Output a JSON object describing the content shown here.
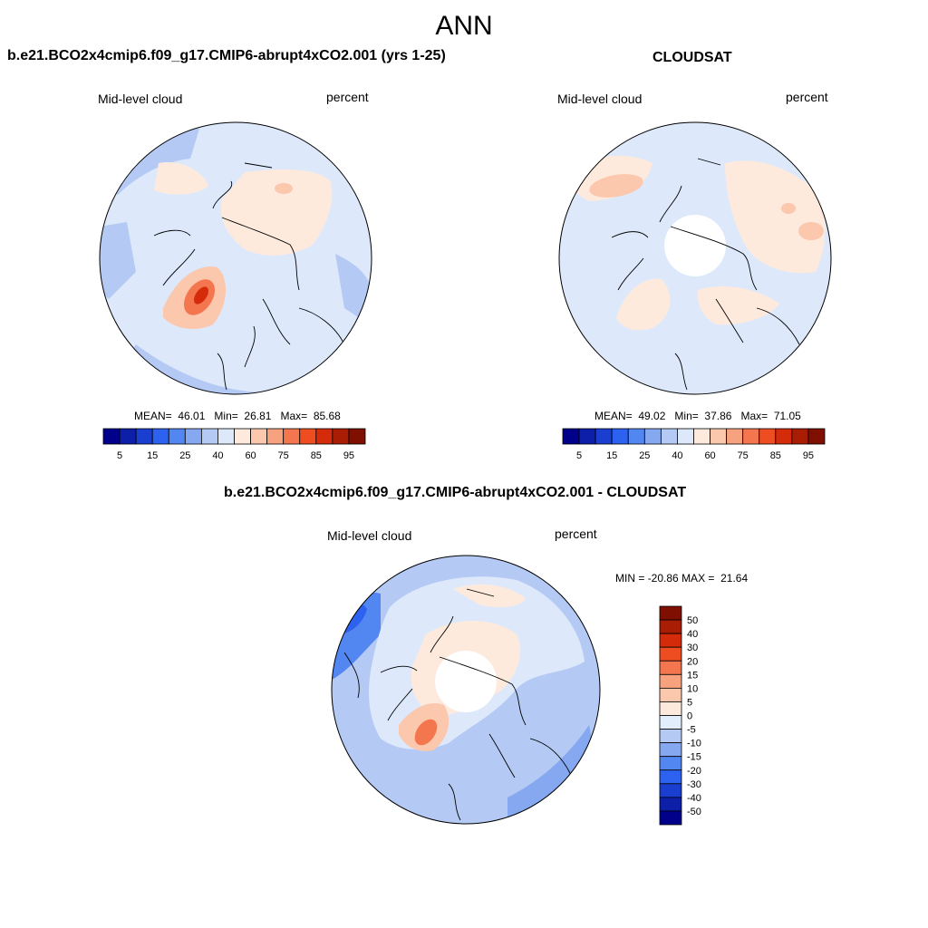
{
  "figure_title": "ANN",
  "panels": [
    {
      "title": "b.e21.BCO2x4cmip6.f09_g17.CMIP6-abrupt4xCO2.001 (yrs 1-25)",
      "left_label": "Mid-level cloud",
      "right_label": "percent",
      "stats": {
        "mean_label": "MEAN=",
        "mean": "46.01",
        "min_label": "Min=",
        "min": "26.81",
        "max_label": "Max=",
        "max": "85.68"
      }
    },
    {
      "title": "CLOUDSAT",
      "left_label": "Mid-level cloud",
      "right_label": "percent",
      "stats": {
        "mean_label": "MEAN=",
        "mean": "49.02",
        "min_label": "Min=",
        "min": "37.86",
        "max_label": "Max=",
        "max": "71.05"
      }
    },
    {
      "title": "b.e21.BCO2x4cmip6.f09_g17.CMIP6-abrupt4xCO2.001 - CLOUDSAT",
      "left_label": "Mid-level cloud",
      "right_label": "percent",
      "stats": {
        "min_label": "MIN =",
        "min": "-20.86",
        "max_label": "MAX =",
        "max": "21.64"
      }
    }
  ],
  "chart_data": [
    {
      "type": "heatmap",
      "projection": "polar stereographic (north pole)",
      "title": "b.e21.BCO2x4cmip6.f09_g17.CMIP6-abrupt4xCO2.001 (yrs 1-25)",
      "variable": "Mid-level cloud",
      "units": "percent",
      "mean": 46.01,
      "min": 26.81,
      "max": 85.68,
      "colorbar": {
        "orientation": "horizontal",
        "levels": [
          5,
          10,
          15,
          20,
          25,
          30,
          40,
          50,
          60,
          65,
          75,
          80,
          85,
          90,
          95
        ],
        "tick_labels": [
          "5",
          "15",
          "25",
          "40",
          "60",
          "75",
          "85",
          "95"
        ],
        "colors": [
          "#00008b",
          "#0d1fa8",
          "#1a3fd0",
          "#2c62ef",
          "#5286f0",
          "#85a8f1",
          "#b4caf4",
          "#dde9fb",
          "#fdeadd",
          "#fbc7ad",
          "#f7a27e",
          "#f4764f",
          "#ee4d22",
          "#d42b0a",
          "#aa1d05",
          "#7f0f00"
        ]
      }
    },
    {
      "type": "heatmap",
      "projection": "polar stereographic (north pole)",
      "title": "CLOUDSAT",
      "variable": "Mid-level cloud",
      "units": "percent",
      "mean": 49.02,
      "min": 37.86,
      "max": 71.05,
      "colorbar": {
        "orientation": "horizontal",
        "levels": [
          5,
          10,
          15,
          20,
          25,
          30,
          40,
          50,
          60,
          65,
          75,
          80,
          85,
          90,
          95
        ],
        "tick_labels": [
          "5",
          "15",
          "25",
          "40",
          "60",
          "75",
          "85",
          "95"
        ],
        "colors": [
          "#00008b",
          "#0d1fa8",
          "#1a3fd0",
          "#2c62ef",
          "#5286f0",
          "#85a8f1",
          "#b4caf4",
          "#dde9fb",
          "#fdeadd",
          "#fbc7ad",
          "#f7a27e",
          "#f4764f",
          "#ee4d22",
          "#d42b0a",
          "#aa1d05",
          "#7f0f00"
        ]
      }
    },
    {
      "type": "heatmap",
      "projection": "polar stereographic (north pole)",
      "title": "b.e21.BCO2x4cmip6.f09_g17.CMIP6-abrupt4xCO2.001 - CLOUDSAT",
      "variable": "Mid-level cloud",
      "units": "percent",
      "min": -20.86,
      "max": 21.64,
      "colorbar": {
        "orientation": "vertical",
        "tick_labels": [
          "50",
          "40",
          "30",
          "20",
          "15",
          "10",
          "5",
          "0",
          "-5",
          "-10",
          "-15",
          "-20",
          "-30",
          "-40",
          "-50"
        ],
        "colors": [
          "#7f0f00",
          "#aa1d05",
          "#d42b0a",
          "#ee4d22",
          "#f4764f",
          "#f7a27e",
          "#fbc7ad",
          "#fdeadd",
          "#e3eefc",
          "#b4caf4",
          "#85a8f1",
          "#5286f0",
          "#2c62ef",
          "#1a3fd0",
          "#0d1fa8",
          "#00008b"
        ]
      }
    }
  ]
}
